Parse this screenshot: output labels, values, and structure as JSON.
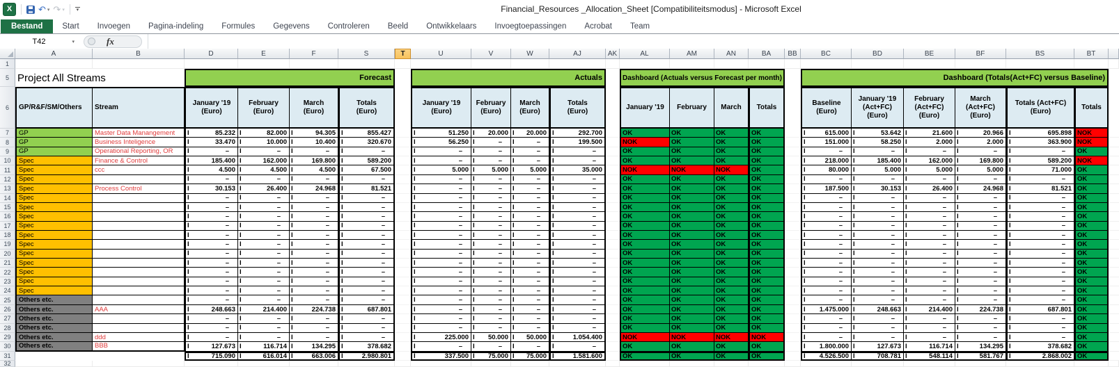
{
  "window": {
    "title": "Financial_Resources _Allocation_Sheet  [Compatibiliteitsmodus]  -  Microsoft Excel"
  },
  "quick_access": {
    "icons": [
      "excel-logo",
      "save",
      "undo",
      "redo",
      "customize-quick-access-menu"
    ],
    "logo_letter": "X"
  },
  "ribbon": {
    "tabs": [
      {
        "label": "Bestand",
        "active": true
      },
      {
        "label": "Start"
      },
      {
        "label": "Invoegen"
      },
      {
        "label": "Pagina-indeling"
      },
      {
        "label": "Formules"
      },
      {
        "label": "Gegevens"
      },
      {
        "label": "Controleren"
      },
      {
        "label": "Beeld"
      },
      {
        "label": "Ontwikkelaars"
      },
      {
        "label": "Invoegtoepassingen"
      },
      {
        "label": "Acrobat"
      },
      {
        "label": "Team"
      }
    ]
  },
  "formula_bar": {
    "name_box": "T42",
    "fx_label": "fx"
  },
  "grid": {
    "value_prefix": "I",
    "dash": "–",
    "selected_column": "T",
    "column_letters": [
      "A",
      "B",
      "D",
      "E",
      "F",
      "S",
      "T",
      "U",
      "V",
      "W",
      "AJ",
      "AK",
      "AL",
      "AM",
      "AN",
      "BA",
      "BB",
      "BC",
      "BD",
      "BE",
      "BF",
      "BS",
      "BT"
    ],
    "row_labels_extra": {
      "r1": "1",
      "r5": "5",
      "r6": "6",
      "r32": "32"
    },
    "sheet_title": "Project All Streams",
    "banners": [
      {
        "id": "forecast",
        "text": "Forecast"
      },
      {
        "id": "actuals",
        "text": "Actuals"
      },
      {
        "id": "dashboard-monthly",
        "text": "Dashboard (Actuals versus Forecast per month)"
      },
      {
        "id": "dashboard-baseline",
        "text": "Dashboard (Totals(Act+FC) versus Baseline)"
      }
    ],
    "headers": {
      "category": "GP/R&F/SM/Others",
      "stream": "Stream",
      "forecast": [
        "January '19\n(Euro)",
        "February\n(Euro)",
        "March\n(Euro)",
        "Totals\n(Euro)"
      ],
      "actuals": [
        "January '19\n(Euro)",
        "February\n(Euro)",
        "March\n(Euro)",
        "Totals\n(Euro)"
      ],
      "monthly": [
        "January '19",
        "February",
        "March",
        "Totals"
      ],
      "baseline": [
        "Baseline\n(Euro)",
        "January '19\n(Act+FC)\n(Euro)",
        "February\n(Act+FC)\n(Euro)",
        "March\n(Act+FC)\n(Euro)",
        "Totals (Act+FC)\n(Euro)",
        "Totals"
      ]
    },
    "colors": {
      "ok": "#00A550",
      "nok": "#FF0000",
      "gp": "#92D050",
      "spec": "#FFC000",
      "others": "#808080",
      "banner": "#92D050",
      "header_fill": "#DDEBF2",
      "stream_text": "#E03C3C",
      "selected_col": "#F8C35D"
    },
    "rows": [
      {
        "n": "7",
        "category": "GP",
        "stream": "Master Data Manangement",
        "forecast": [
          "85.232",
          "82.000",
          "94.305",
          "855.427"
        ],
        "actuals": [
          "51.250",
          "20.000",
          "20.000",
          "292.700"
        ],
        "status_monthly": [
          "OK",
          "OK",
          "OK",
          "OK"
        ],
        "baseline_totals": [
          "615.000",
          "53.642",
          "21.600",
          "20.966",
          "695.898"
        ],
        "totals_status": "NOK"
      },
      {
        "n": "8",
        "category": "GP",
        "stream": "Business Inteligence",
        "forecast": [
          "33.470",
          "10.000",
          "10.400",
          "320.670"
        ],
        "actuals": [
          "56.250",
          "–",
          "–",
          "199.500"
        ],
        "status_monthly": [
          "NOK",
          "OK",
          "OK",
          "OK"
        ],
        "baseline_totals": [
          "151.000",
          "58.250",
          "2.000",
          "2.000",
          "363.900"
        ],
        "totals_status": "NOK"
      },
      {
        "n": "9",
        "category": "GP",
        "stream": "Operational Reporting, OR",
        "forecast": [
          "–",
          "–",
          "–",
          "–"
        ],
        "actuals": [
          "–",
          "–",
          "–",
          "–"
        ],
        "status_monthly": [
          "OK",
          "OK",
          "OK",
          "OK"
        ],
        "baseline_totals": [
          "–",
          "–",
          "–",
          "–",
          "–"
        ],
        "totals_status": "OK"
      },
      {
        "n": "10",
        "category": "Spec",
        "stream": "Finance & Control",
        "forecast": [
          "185.400",
          "162.000",
          "169.800",
          "589.200"
        ],
        "actuals": [
          "–",
          "–",
          "–",
          "–"
        ],
        "status_monthly": [
          "OK",
          "OK",
          "OK",
          "OK"
        ],
        "baseline_totals": [
          "218.000",
          "185.400",
          "162.000",
          "169.800",
          "589.200"
        ],
        "totals_status": "NOK"
      },
      {
        "n": "11",
        "category": "Spec",
        "stream": "ccc",
        "forecast": [
          "4.500",
          "4.500",
          "4.500",
          "67.500"
        ],
        "actuals": [
          "5.000",
          "5.000",
          "5.000",
          "35.000"
        ],
        "status_monthly": [
          "NOK",
          "NOK",
          "NOK",
          "OK"
        ],
        "baseline_totals": [
          "80.000",
          "5.000",
          "5.000",
          "5.000",
          "71.000"
        ],
        "totals_status": "OK"
      },
      {
        "n": "12",
        "category": "Spec",
        "stream": "",
        "forecast": [
          "–",
          "–",
          "–",
          "–"
        ],
        "actuals": [
          "–",
          "–",
          "–",
          "–"
        ],
        "status_monthly": [
          "OK",
          "OK",
          "OK",
          "OK"
        ],
        "baseline_totals": [
          "–",
          "–",
          "–",
          "–",
          "–"
        ],
        "totals_status": "OK"
      },
      {
        "n": "13",
        "category": "Spec",
        "stream": "Process Control",
        "forecast": [
          "30.153",
          "26.400",
          "24.968",
          "81.521"
        ],
        "actuals": [
          "–",
          "–",
          "–",
          "–"
        ],
        "status_monthly": [
          "OK",
          "OK",
          "OK",
          "OK"
        ],
        "baseline_totals": [
          "187.500",
          "30.153",
          "26.400",
          "24.968",
          "81.521"
        ],
        "totals_status": "OK"
      },
      {
        "n": "14",
        "category": "Spec",
        "stream": "",
        "forecast": [
          "–",
          "–",
          "–",
          "–"
        ],
        "actuals": [
          "–",
          "–",
          "–",
          "–"
        ],
        "status_monthly": [
          "OK",
          "OK",
          "OK",
          "OK"
        ],
        "baseline_totals": [
          "–",
          "–",
          "–",
          "–",
          "–"
        ],
        "totals_status": "OK"
      },
      {
        "n": "15",
        "category": "Spec",
        "stream": "",
        "forecast": [
          "–",
          "–",
          "–",
          "–"
        ],
        "actuals": [
          "–",
          "–",
          "–",
          "–"
        ],
        "status_monthly": [
          "OK",
          "OK",
          "OK",
          "OK"
        ],
        "baseline_totals": [
          "–",
          "–",
          "–",
          "–",
          "–"
        ],
        "totals_status": "OK"
      },
      {
        "n": "16",
        "category": "Spec",
        "stream": "",
        "forecast": [
          "–",
          "–",
          "–",
          "–"
        ],
        "actuals": [
          "–",
          "–",
          "–",
          "–"
        ],
        "status_monthly": [
          "OK",
          "OK",
          "OK",
          "OK"
        ],
        "baseline_totals": [
          "–",
          "–",
          "–",
          "–",
          "–"
        ],
        "totals_status": "OK"
      },
      {
        "n": "17",
        "category": "Spec",
        "stream": "",
        "forecast": [
          "–",
          "–",
          "–",
          "–"
        ],
        "actuals": [
          "–",
          "–",
          "–",
          "–"
        ],
        "status_monthly": [
          "OK",
          "OK",
          "OK",
          "OK"
        ],
        "baseline_totals": [
          "–",
          "–",
          "–",
          "–",
          "–"
        ],
        "totals_status": "OK"
      },
      {
        "n": "18",
        "category": "Spec",
        "stream": "",
        "forecast": [
          "–",
          "–",
          "–",
          "–"
        ],
        "actuals": [
          "–",
          "–",
          "–",
          "–"
        ],
        "status_monthly": [
          "OK",
          "OK",
          "OK",
          "OK"
        ],
        "baseline_totals": [
          "–",
          "–",
          "–",
          "–",
          "–"
        ],
        "totals_status": "OK"
      },
      {
        "n": "19",
        "category": "Spec",
        "stream": "",
        "forecast": [
          "–",
          "–",
          "–",
          "–"
        ],
        "actuals": [
          "–",
          "–",
          "–",
          "–"
        ],
        "status_monthly": [
          "OK",
          "OK",
          "OK",
          "OK"
        ],
        "baseline_totals": [
          "–",
          "–",
          "–",
          "–",
          "–"
        ],
        "totals_status": "OK"
      },
      {
        "n": "20",
        "category": "Spec",
        "stream": "",
        "forecast": [
          "–",
          "–",
          "–",
          "–"
        ],
        "actuals": [
          "–",
          "–",
          "–",
          "–"
        ],
        "status_monthly": [
          "OK",
          "OK",
          "OK",
          "OK"
        ],
        "baseline_totals": [
          "–",
          "–",
          "–",
          "–",
          "–"
        ],
        "totals_status": "OK"
      },
      {
        "n": "21",
        "category": "Spec",
        "stream": "",
        "forecast": [
          "–",
          "–",
          "–",
          "–"
        ],
        "actuals": [
          "–",
          "–",
          "–",
          "–"
        ],
        "status_monthly": [
          "OK",
          "OK",
          "OK",
          "OK"
        ],
        "baseline_totals": [
          "–",
          "–",
          "–",
          "–",
          "–"
        ],
        "totals_status": "OK"
      },
      {
        "n": "22",
        "category": "Spec",
        "stream": "",
        "forecast": [
          "–",
          "–",
          "–",
          "–"
        ],
        "actuals": [
          "–",
          "–",
          "–",
          "–"
        ],
        "status_monthly": [
          "OK",
          "OK",
          "OK",
          "OK"
        ],
        "baseline_totals": [
          "–",
          "–",
          "–",
          "–",
          "–"
        ],
        "totals_status": "OK"
      },
      {
        "n": "23",
        "category": "Spec",
        "stream": "",
        "forecast": [
          "–",
          "–",
          "–",
          "–"
        ],
        "actuals": [
          "–",
          "–",
          "–",
          "–"
        ],
        "status_monthly": [
          "OK",
          "OK",
          "OK",
          "OK"
        ],
        "baseline_totals": [
          "–",
          "–",
          "–",
          "–",
          "–"
        ],
        "totals_status": "OK"
      },
      {
        "n": "24",
        "category": "Spec",
        "stream": "",
        "forecast": [
          "–",
          "–",
          "–",
          "–"
        ],
        "actuals": [
          "–",
          "–",
          "–",
          "–"
        ],
        "status_monthly": [
          "OK",
          "OK",
          "OK",
          "OK"
        ],
        "baseline_totals": [
          "–",
          "–",
          "–",
          "–",
          "–"
        ],
        "totals_status": "OK"
      },
      {
        "n": "25",
        "category": "Others etc.",
        "stream": "",
        "forecast": [
          "–",
          "–",
          "–",
          "–"
        ],
        "actuals": [
          "–",
          "–",
          "–",
          "–"
        ],
        "status_monthly": [
          "OK",
          "OK",
          "OK",
          "OK"
        ],
        "baseline_totals": [
          "–",
          "–",
          "–",
          "–",
          "–"
        ],
        "totals_status": "OK"
      },
      {
        "n": "26",
        "category": "Others etc.",
        "stream": "AAA",
        "forecast": [
          "248.663",
          "214.400",
          "224.738",
          "687.801"
        ],
        "actuals": [
          "–",
          "–",
          "–",
          "–"
        ],
        "status_monthly": [
          "OK",
          "OK",
          "OK",
          "OK"
        ],
        "baseline_totals": [
          "1.475.000",
          "248.663",
          "214.400",
          "224.738",
          "687.801"
        ],
        "totals_status": "OK"
      },
      {
        "n": "27",
        "category": "Others etc.",
        "stream": "",
        "forecast": [
          "–",
          "–",
          "–",
          "–"
        ],
        "actuals": [
          "–",
          "–",
          "–",
          "–"
        ],
        "status_monthly": [
          "OK",
          "OK",
          "OK",
          "OK"
        ],
        "baseline_totals": [
          "–",
          "–",
          "–",
          "–",
          "–"
        ],
        "totals_status": "OK"
      },
      {
        "n": "28",
        "category": "Others etc.",
        "stream": "",
        "forecast": [
          "–",
          "–",
          "–",
          "–"
        ],
        "actuals": [
          "–",
          "–",
          "–",
          "–"
        ],
        "status_monthly": [
          "OK",
          "OK",
          "OK",
          "OK"
        ],
        "baseline_totals": [
          "–",
          "–",
          "–",
          "–",
          "–"
        ],
        "totals_status": "OK"
      },
      {
        "n": "29",
        "category": "Others etc.",
        "stream": "ddd",
        "forecast": [
          "–",
          "–",
          "–",
          "–"
        ],
        "actuals": [
          "225.000",
          "50.000",
          "50.000",
          "1.054.400"
        ],
        "status_monthly": [
          "NOK",
          "NOK",
          "NOK",
          "NOK"
        ],
        "baseline_totals": [
          "–",
          "–",
          "–",
          "–",
          "–"
        ],
        "totals_status": "OK"
      },
      {
        "n": "30",
        "category": "Others etc.",
        "stream": "BBB",
        "forecast": [
          "127.673",
          "116.714",
          "134.295",
          "378.682"
        ],
        "actuals": [
          "–",
          "–",
          "–",
          "–"
        ],
        "status_monthly": [
          "OK",
          "OK",
          "OK",
          "OK"
        ],
        "baseline_totals": [
          "1.800.000",
          "127.673",
          "116.714",
          "134.295",
          "378.682"
        ],
        "totals_status": "OK"
      },
      {
        "n": "31",
        "category": "",
        "stream": "",
        "forecast": [
          "715.090",
          "616.014",
          "663.006",
          "2.980.801"
        ],
        "actuals": [
          "337.500",
          "75.000",
          "75.000",
          "1.581.600"
        ],
        "status_monthly": [
          "OK",
          "OK",
          "OK",
          "OK"
        ],
        "baseline_totals": [
          "4.526.500",
          "708.781",
          "548.114",
          "581.767",
          "2.868.002"
        ],
        "totals_status": "OK",
        "total_row": true
      }
    ]
  }
}
